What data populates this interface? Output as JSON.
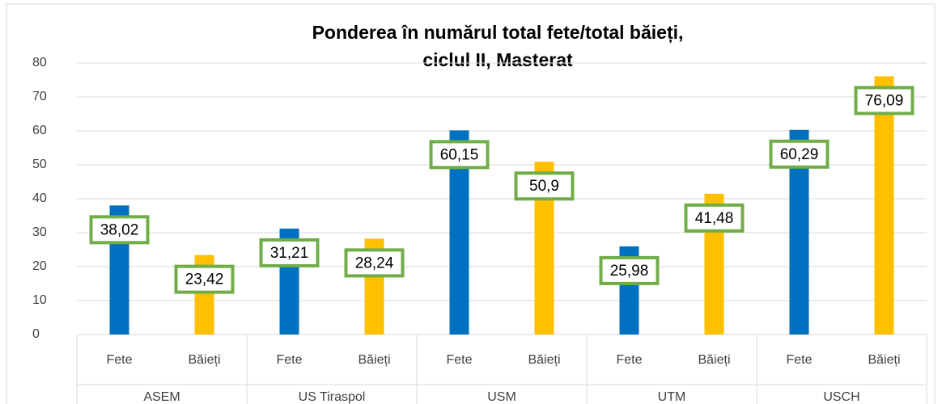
{
  "chart_data": {
    "type": "bar",
    "title": [
      "Ponderea în numărul total fete/total băieți,",
      "ciclul II, Masterat"
    ],
    "categories": [
      "Fete",
      "Băieți",
      "Fete",
      "Băieți",
      "Fete",
      "Băieți",
      "Fete",
      "Băieți",
      "Fete",
      "Băieți"
    ],
    "groups": [
      "ASEM",
      "US Tiraspol",
      "USM",
      "UTM",
      "USCH"
    ],
    "values": [
      38.02,
      23.42,
      31.21,
      28.24,
      60.15,
      50.9,
      25.98,
      41.48,
      60.29,
      76.09
    ],
    "value_labels": [
      "38,02",
      "23,42",
      "31,21",
      "28,24",
      "60,15",
      "50,9",
      "25,98",
      "41,48",
      "60,29",
      "76,09"
    ],
    "colors": [
      "#0070c0",
      "#ffc000",
      "#0070c0",
      "#ffc000",
      "#0070c0",
      "#ffc000",
      "#0070c0",
      "#ffc000",
      "#0070c0",
      "#ffc000"
    ],
    "ylim": [
      0,
      80
    ],
    "yticks": [
      0,
      10,
      20,
      30,
      40,
      50,
      60,
      70,
      80
    ],
    "grid": true
  }
}
